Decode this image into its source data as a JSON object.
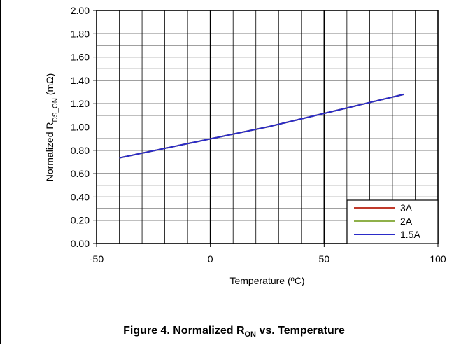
{
  "chart_data": {
    "type": "line",
    "xlabel": "Temperature (ºC)",
    "ylabel_main": "Normalized R",
    "ylabel_sub": "DS_ON",
    "ylabel_tail": " (mΩ)",
    "xlim": [
      -50,
      100
    ],
    "ylim": [
      0,
      2
    ],
    "x_ticks": [
      "-50",
      "0",
      "50",
      "100"
    ],
    "y_ticks": [
      "0.00",
      "0.20",
      "0.40",
      "0.60",
      "0.80",
      "1.00",
      "1.20",
      "1.40",
      "1.60",
      "1.80",
      "2.00"
    ],
    "grid": true,
    "legend_position": "bottom-right",
    "series": [
      {
        "name": "3A",
        "color": "#c0392b",
        "x": [
          -40,
          25,
          85
        ],
        "y": [
          0.735,
          1.0,
          1.28
        ]
      },
      {
        "name": "2A",
        "color": "#8fb04a",
        "x": [
          -40,
          25,
          85
        ],
        "y": [
          0.735,
          1.0,
          1.28
        ]
      },
      {
        "name": "1.5A",
        "color": "#2b2bc8",
        "x": [
          -40,
          25,
          85
        ],
        "y": [
          0.735,
          1.0,
          1.28
        ]
      }
    ]
  },
  "caption": {
    "prefix": "Figure 4. Normalized R",
    "sub": "ON",
    "suffix": " vs. Temperature"
  }
}
